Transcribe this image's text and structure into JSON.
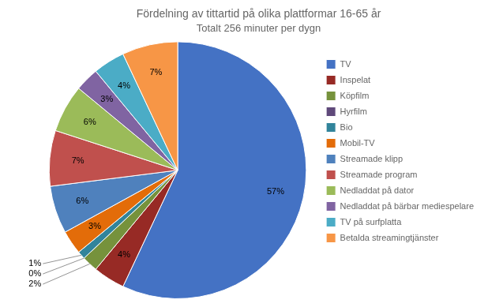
{
  "chart_data": {
    "type": "pie",
    "title": "Fördelning av tittartid på olika plattformar 16-65 år",
    "subtitle": "Totalt 256 minuter per dygn",
    "categories": [
      "TV",
      "Inspelat",
      "Köpfilm",
      "Hyrfilm",
      "Bio",
      "Mobil-TV",
      "Streamade klipp",
      "Streamade program",
      "Nedladdat på dator",
      "Nedladdat på bärbar mediespelare",
      "TV på surfplatta",
      "Betalda streamingtjänster"
    ],
    "values": [
      57,
      4,
      2,
      0,
      1,
      3,
      6,
      7,
      6,
      3,
      4,
      7
    ],
    "value_labels": [
      "57%",
      "4%",
      "2%",
      "0%",
      "1%",
      "3%",
      "6%",
      "7%",
      "6%",
      "3%",
      "4%",
      "7%"
    ],
    "colors": [
      "#4472C4",
      "#972A25",
      "#76923C",
      "#5F497A",
      "#31849B",
      "#E36C09",
      "#4F81BD",
      "#C0504D",
      "#9BBB59",
      "#8064A2",
      "#4BACC6",
      "#F79646"
    ],
    "data_labels": true,
    "legend": "right"
  }
}
